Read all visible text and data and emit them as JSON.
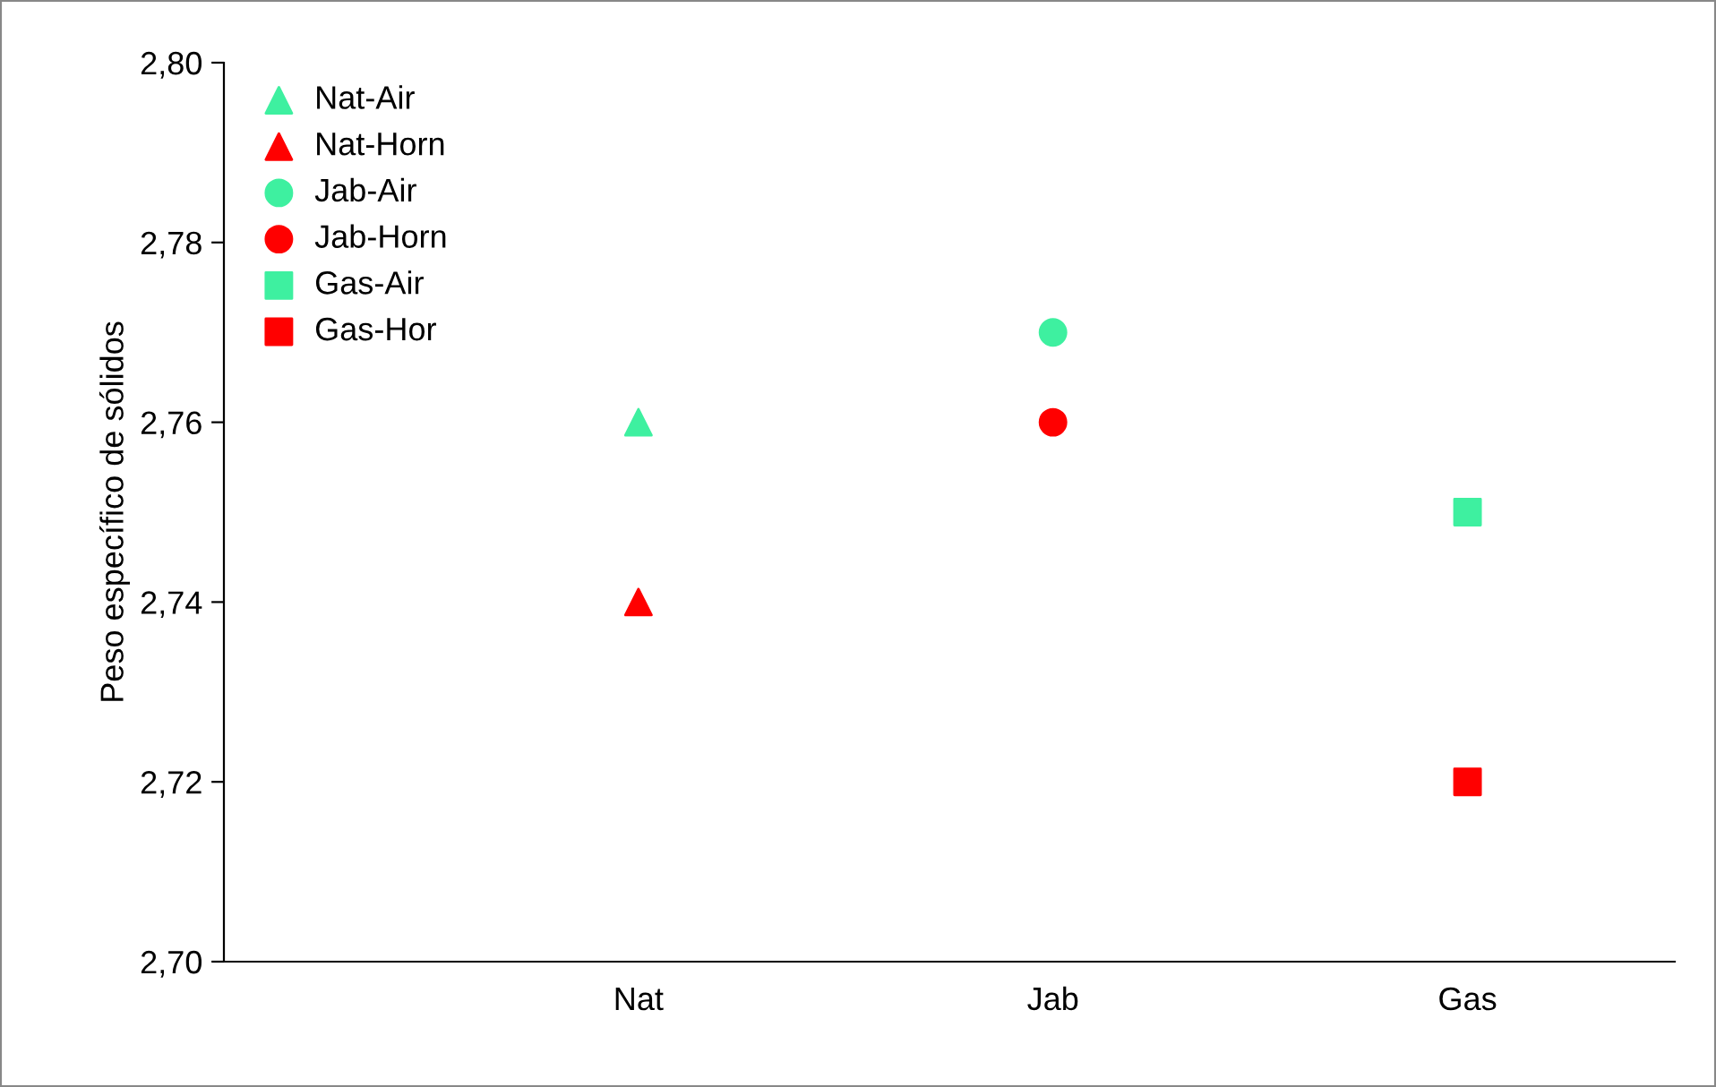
{
  "chart_data": {
    "type": "scatter",
    "ylabel": "Peso específico de sólidos",
    "categories": [
      null,
      "Nat",
      "Jab",
      "Gas"
    ],
    "ylim": [
      2.7,
      2.8
    ],
    "yticks": [
      {
        "value": 2.7,
        "label": "2,70"
      },
      {
        "value": 2.72,
        "label": "2,72"
      },
      {
        "value": 2.74,
        "label": "2,74"
      },
      {
        "value": 2.76,
        "label": "2,76"
      },
      {
        "value": 2.78,
        "label": "2,78"
      },
      {
        "value": 2.8,
        "label": "2,80"
      }
    ],
    "grid": false,
    "legend": "top left",
    "series": [
      {
        "name": "Nat-Air",
        "color": "#3ef0a0",
        "marker": "triangle",
        "values": [
          null,
          2.76,
          null,
          null
        ]
      },
      {
        "name": "Nat-Horn",
        "color": "#ff0000",
        "marker": "triangle",
        "values": [
          null,
          2.74,
          null,
          null
        ]
      },
      {
        "name": "Jab-Air",
        "color": "#3ef0a0",
        "marker": "circle",
        "values": [
          null,
          null,
          2.77,
          null
        ]
      },
      {
        "name": "Jab-Horn",
        "color": "#ff0000",
        "marker": "circle",
        "values": [
          null,
          null,
          2.76,
          null
        ]
      },
      {
        "name": "Gas-Air",
        "color": "#3ef0a0",
        "marker": "square",
        "values": [
          null,
          null,
          null,
          2.75
        ]
      },
      {
        "name": "Gas-Hor",
        "color": "#ff0000",
        "marker": "square",
        "values": [
          null,
          null,
          null,
          2.72
        ]
      }
    ]
  }
}
